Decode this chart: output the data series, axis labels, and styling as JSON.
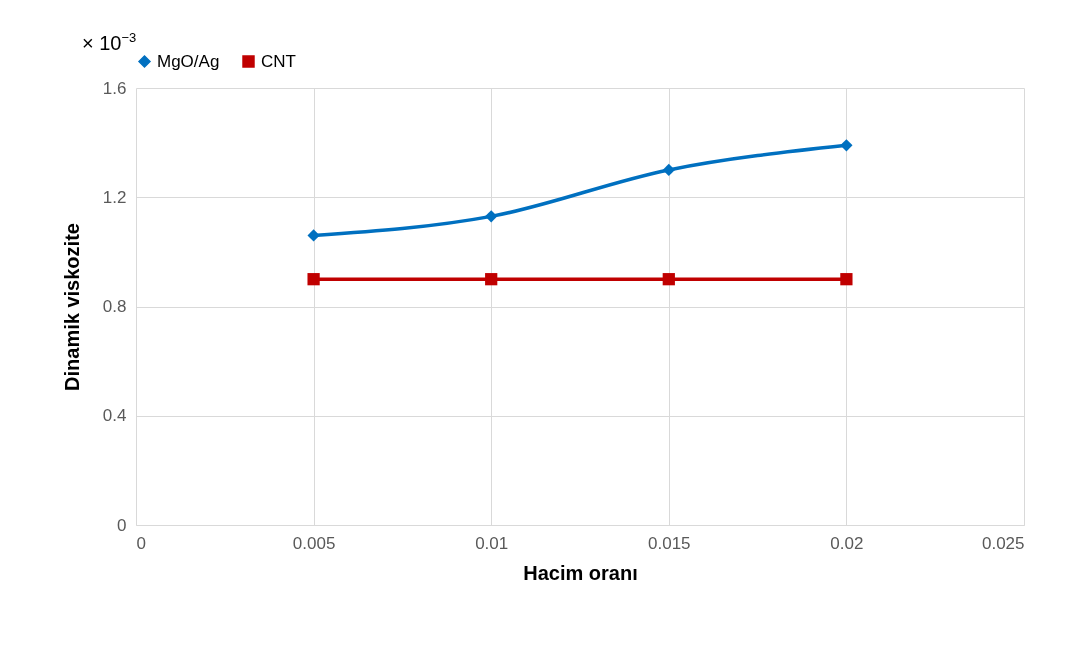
{
  "chart_data": {
    "type": "line",
    "xlabel": "Hacim oranı",
    "ylabel": "Dinamik viskozite",
    "annotations": [
      "× 10$^{−3}$"
    ],
    "x": [
      0.005,
      0.01,
      0.015,
      0.02
    ],
    "series": [
      {
        "name": "MgO/Ag",
        "color": "#0070c0",
        "marker": "diamond",
        "values": [
          1.06,
          1.13,
          1.3,
          1.39
        ]
      },
      {
        "name": "CNT",
        "color": "#c00000",
        "marker": "square",
        "values": [
          0.9,
          0.9,
          0.9,
          0.9
        ]
      }
    ],
    "xlim": [
      0,
      0.025
    ],
    "xticks": [
      0,
      0.005,
      0.01,
      0.015,
      0.02,
      0.025
    ],
    "ylim": [
      0,
      1.6
    ],
    "yticks": [
      0,
      0.4,
      0.8,
      1.2,
      1.6
    ],
    "grid": true,
    "legend": "top",
    "line_style": "solid"
  }
}
